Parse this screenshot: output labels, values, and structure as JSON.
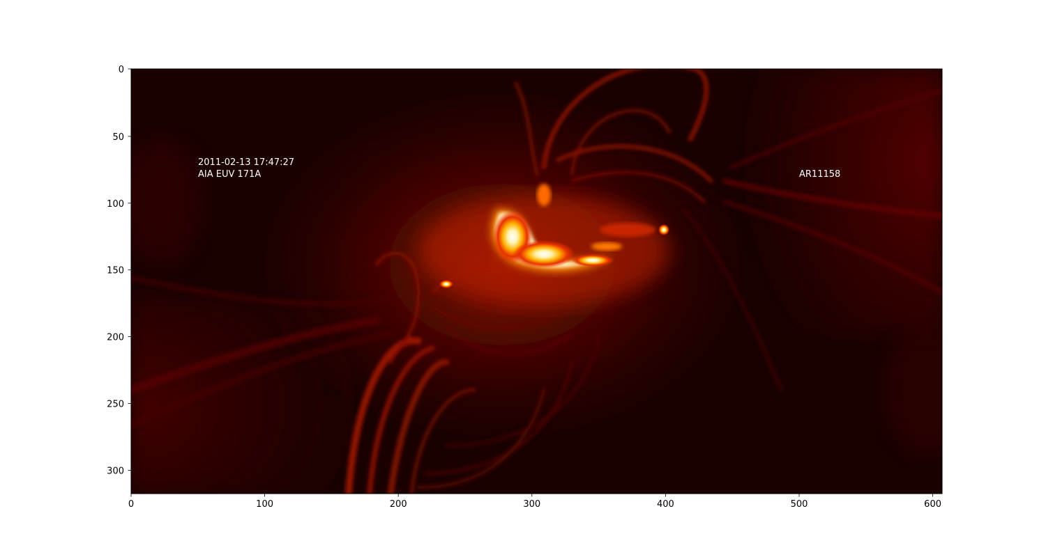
{
  "image": {
    "colormap": "sdoaia171",
    "extent": {
      "x": [
        0,
        607
      ],
      "y": [
        0,
        318
      ]
    },
    "y_axis_inverted": true,
    "x_ticks": [
      "0",
      "100",
      "200",
      "300",
      "400",
      "500",
      "600"
    ],
    "y_ticks": [
      "0",
      "50",
      "100",
      "150",
      "200",
      "250",
      "300"
    ]
  },
  "annotations": {
    "timestamp": "2011-02-13 17:47:27",
    "instrument": "AIA EUV 171A",
    "region": "AR11158"
  }
}
